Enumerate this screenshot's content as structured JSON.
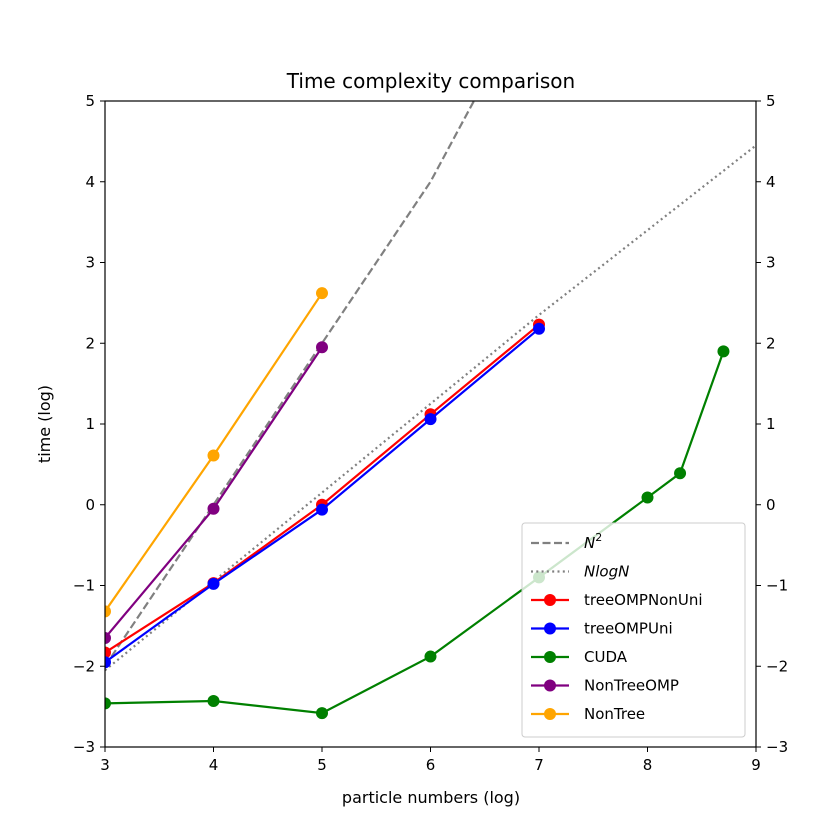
{
  "chart_data": {
    "type": "line",
    "title": "Time complexity comparison",
    "xlabel": "particle numbers (log)",
    "ylabel": "time (log)",
    "xlim": [
      3,
      9
    ],
    "ylim": [
      -3,
      5
    ],
    "xticks": [
      "3",
      "4",
      "5",
      "6",
      "7",
      "8",
      "9"
    ],
    "yticks": [
      "−3",
      "−2",
      "−1",
      "0",
      "1",
      "2",
      "3",
      "4",
      "5"
    ],
    "yticks_right": [
      "−3",
      "−2",
      "−1",
      "0",
      "1",
      "2",
      "3",
      "4",
      "5"
    ],
    "grid": false,
    "legend_placement": "lower right",
    "reference_lines": [
      {
        "name": "N2",
        "legend": {
          "base": "N",
          "sup": "2"
        },
        "style": "dashed",
        "color": "#808080",
        "x": [
          3,
          4,
          5,
          6,
          6.4
        ],
        "y": [
          -2.0,
          0.0,
          2.0,
          4.0,
          5.0
        ]
      },
      {
        "name": "NlogN",
        "legend": {
          "base": "NlogN",
          "sup": ""
        },
        "style": "dotted",
        "color": "#808080",
        "x": [
          3,
          4,
          5,
          6,
          7,
          8,
          9
        ],
        "y": [
          -2.05,
          -0.95,
          0.15,
          1.25,
          2.35,
          3.4,
          4.45
        ]
      }
    ],
    "series": [
      {
        "name": "treeOMPNonUni",
        "color": "#ff0000",
        "x": [
          3,
          4,
          5,
          6,
          7
        ],
        "y": [
          -1.83,
          -0.97,
          0.0,
          1.12,
          2.23
        ]
      },
      {
        "name": "treeOMPUni",
        "color": "#0000ff",
        "x": [
          3,
          4,
          5,
          6,
          7
        ],
        "y": [
          -1.95,
          -0.98,
          -0.06,
          1.06,
          2.18
        ]
      },
      {
        "name": "CUDA",
        "color": "#008000",
        "x": [
          3,
          4,
          5,
          6,
          7,
          8,
          8.3,
          8.7
        ],
        "y": [
          -2.46,
          -2.43,
          -2.58,
          -1.88,
          -0.9,
          0.09,
          0.39,
          1.9
        ]
      },
      {
        "name": "NonTreeOMP",
        "color": "#800080",
        "x": [
          3,
          4,
          5
        ],
        "y": [
          -1.65,
          -0.05,
          1.95
        ]
      },
      {
        "name": "NonTree",
        "color": "#ffa500",
        "x": [
          3,
          4,
          5
        ],
        "y": [
          -1.32,
          0.61,
          2.62
        ]
      }
    ]
  }
}
